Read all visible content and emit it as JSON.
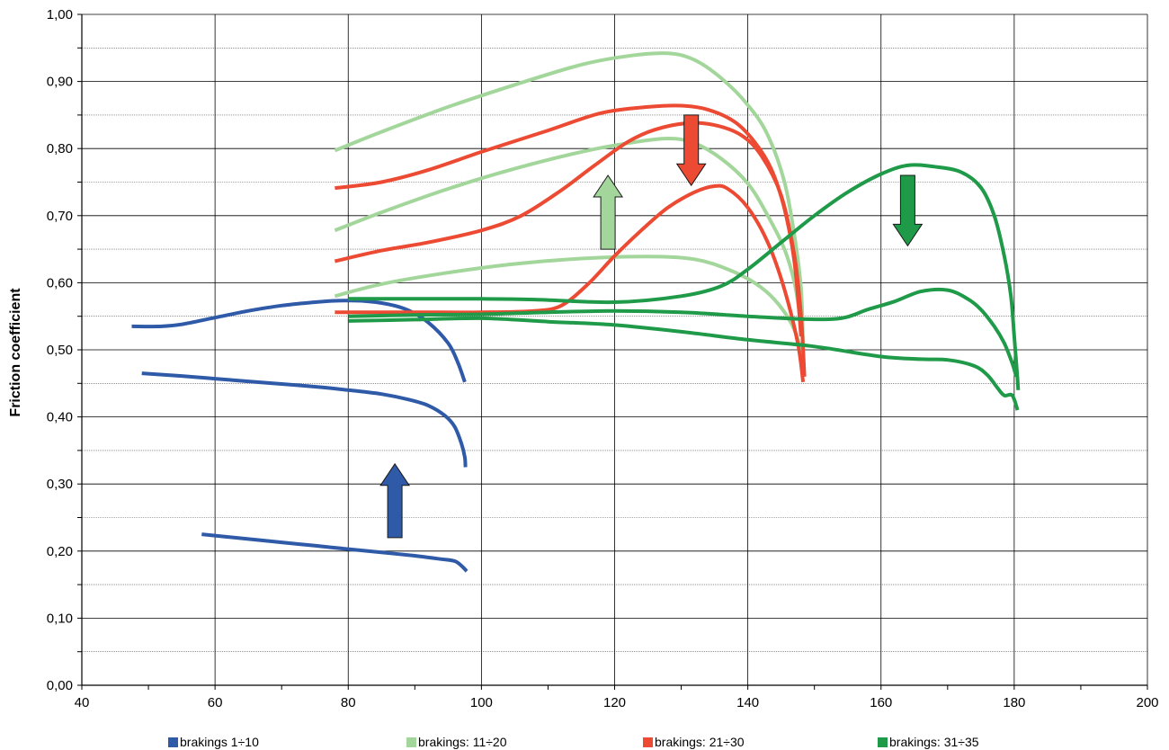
{
  "chart_data": {
    "type": "line",
    "title": "",
    "xlabel": "",
    "ylabel": "Friction coefficient",
    "xlim": [
      40,
      200
    ],
    "ylim": [
      0,
      1.0
    ],
    "x_ticks": [
      40,
      60,
      80,
      100,
      120,
      140,
      160,
      180,
      200
    ],
    "y_ticks": [
      "0,00",
      "0,10",
      "0,20",
      "0,30",
      "0,40",
      "0,50",
      "0,60",
      "0,70",
      "0,80",
      "0,90",
      "1,00"
    ],
    "grid": "horizontal every 0.05, vertical every 20",
    "legend_position": "bottom",
    "legend": [
      {
        "label": "brakings 1÷10",
        "color": "#2f5aa8"
      },
      {
        "label": "brakings: 11÷20",
        "color": "#a3d69a"
      },
      {
        "label": "brakings: 21÷30",
        "color": "#ec4a32"
      },
      {
        "label": "brakings: 31÷35",
        "color": "#1f9a48"
      }
    ],
    "series": [
      {
        "group": "brakings 1÷10",
        "color": "#2f5aa8",
        "points": [
          [
            47.5,
            0.535
          ],
          [
            52,
            0.535
          ],
          [
            55,
            0.538
          ],
          [
            60,
            0.548
          ],
          [
            65,
            0.558
          ],
          [
            70,
            0.566
          ],
          [
            75,
            0.571
          ],
          [
            78,
            0.573
          ],
          [
            82,
            0.573
          ],
          [
            86,
            0.568
          ],
          [
            89,
            0.559
          ],
          [
            92,
            0.541
          ],
          [
            95,
            0.51
          ],
          [
            96.5,
            0.48
          ],
          [
            97.5,
            0.452
          ]
        ]
      },
      {
        "group": "brakings 1÷10",
        "color": "#2f5aa8",
        "points": [
          [
            49,
            0.465
          ],
          [
            55,
            0.461
          ],
          [
            60,
            0.457
          ],
          [
            65,
            0.453
          ],
          [
            70,
            0.449
          ],
          [
            75,
            0.445
          ],
          [
            80,
            0.44
          ],
          [
            85,
            0.434
          ],
          [
            89,
            0.426
          ],
          [
            92,
            0.417
          ],
          [
            94.5,
            0.402
          ],
          [
            96,
            0.385
          ],
          [
            97,
            0.36
          ],
          [
            97.5,
            0.34
          ],
          [
            97.6,
            0.325
          ]
        ]
      },
      {
        "group": "brakings 1÷10",
        "color": "#2f5aa8",
        "points": [
          [
            58,
            0.225
          ],
          [
            65,
            0.218
          ],
          [
            70,
            0.213
          ],
          [
            75,
            0.208
          ],
          [
            80,
            0.203
          ],
          [
            85,
            0.198
          ],
          [
            90,
            0.193
          ],
          [
            94,
            0.188
          ],
          [
            96,
            0.185
          ],
          [
            97,
            0.178
          ],
          [
            97.8,
            0.17
          ]
        ]
      },
      {
        "group": "brakings: 11÷20",
        "color": "#a3d69a",
        "points": [
          [
            78,
            0.797
          ],
          [
            85,
            0.825
          ],
          [
            95,
            0.862
          ],
          [
            105,
            0.895
          ],
          [
            115,
            0.925
          ],
          [
            122,
            0.938
          ],
          [
            128,
            0.942
          ],
          [
            132,
            0.932
          ],
          [
            136,
            0.905
          ],
          [
            140,
            0.865
          ],
          [
            143,
            0.82
          ],
          [
            145.5,
            0.75
          ],
          [
            147,
            0.67
          ],
          [
            148,
            0.59
          ],
          [
            148.3,
            0.5
          ]
        ]
      },
      {
        "group": "brakings: 11÷20",
        "color": "#a3d69a",
        "points": [
          [
            78,
            0.678
          ],
          [
            85,
            0.705
          ],
          [
            95,
            0.74
          ],
          [
            105,
            0.77
          ],
          [
            115,
            0.795
          ],
          [
            122,
            0.808
          ],
          [
            128,
            0.815
          ],
          [
            132,
            0.808
          ],
          [
            136,
            0.785
          ],
          [
            140,
            0.748
          ],
          [
            143,
            0.7
          ],
          [
            145.5,
            0.65
          ],
          [
            147,
            0.6
          ],
          [
            148,
            0.54
          ]
        ]
      },
      {
        "group": "brakings: 11÷20",
        "color": "#a3d69a",
        "points": [
          [
            78,
            0.58
          ],
          [
            85,
            0.598
          ],
          [
            95,
            0.615
          ],
          [
            105,
            0.628
          ],
          [
            115,
            0.636
          ],
          [
            125,
            0.639
          ],
          [
            132,
            0.635
          ],
          [
            137,
            0.62
          ],
          [
            141,
            0.6
          ],
          [
            144,
            0.575
          ],
          [
            146.5,
            0.54
          ],
          [
            148,
            0.5
          ],
          [
            148.2,
            0.48
          ]
        ]
      },
      {
        "group": "brakings: 21÷30",
        "color": "#ec4a32",
        "points": [
          [
            78,
            0.741
          ],
          [
            85,
            0.75
          ],
          [
            92,
            0.768
          ],
          [
            100,
            0.795
          ],
          [
            110,
            0.827
          ],
          [
            118,
            0.853
          ],
          [
            125,
            0.862
          ],
          [
            130,
            0.864
          ],
          [
            134,
            0.858
          ],
          [
            138,
            0.84
          ],
          [
            141,
            0.81
          ],
          [
            143.5,
            0.77
          ],
          [
            145.5,
            0.71
          ],
          [
            147,
            0.63
          ],
          [
            148,
            0.52
          ]
        ]
      },
      {
        "group": "brakings: 21÷30",
        "color": "#ec4a32",
        "points": [
          [
            78,
            0.632
          ],
          [
            85,
            0.648
          ],
          [
            92,
            0.66
          ],
          [
            100,
            0.678
          ],
          [
            106,
            0.7
          ],
          [
            112,
            0.738
          ],
          [
            117,
            0.775
          ],
          [
            122,
            0.81
          ],
          [
            126,
            0.828
          ],
          [
            131,
            0.838
          ],
          [
            135,
            0.835
          ],
          [
            139,
            0.82
          ],
          [
            142,
            0.79
          ],
          [
            145,
            0.73
          ],
          [
            147,
            0.64
          ],
          [
            148,
            0.55
          ],
          [
            148.5,
            0.46
          ]
        ]
      },
      {
        "group": "brakings: 21÷30",
        "color": "#ec4a32",
        "points": [
          [
            78,
            0.556
          ],
          [
            90,
            0.556
          ],
          [
            100,
            0.556
          ],
          [
            108,
            0.558
          ],
          [
            112,
            0.566
          ],
          [
            116,
            0.598
          ],
          [
            120,
            0.64
          ],
          [
            124,
            0.678
          ],
          [
            128,
            0.712
          ],
          [
            132,
            0.735
          ],
          [
            135,
            0.744
          ],
          [
            137,
            0.74
          ],
          [
            140,
            0.712
          ],
          [
            143,
            0.66
          ],
          [
            145.5,
            0.59
          ],
          [
            147.5,
            0.51
          ],
          [
            148.3,
            0.452
          ]
        ]
      },
      {
        "group": "brakings: 31÷35",
        "color": "#1f9a48",
        "points": [
          [
            80,
            0.576
          ],
          [
            90,
            0.576
          ],
          [
            100,
            0.576
          ],
          [
            108,
            0.575
          ],
          [
            120,
            0.571
          ],
          [
            130,
            0.58
          ],
          [
            136,
            0.595
          ],
          [
            140,
            0.62
          ],
          [
            145,
            0.66
          ],
          [
            150,
            0.7
          ],
          [
            155,
            0.735
          ],
          [
            160,
            0.762
          ],
          [
            164,
            0.775
          ],
          [
            168,
            0.773
          ],
          [
            172,
            0.765
          ],
          [
            175,
            0.742
          ],
          [
            177,
            0.7
          ],
          [
            178.5,
            0.64
          ],
          [
            179.5,
            0.58
          ],
          [
            180,
            0.52
          ],
          [
            180.4,
            0.47
          ],
          [
            180.6,
            0.44
          ]
        ]
      },
      {
        "group": "brakings: 31÷35",
        "color": "#1f9a48",
        "points": [
          [
            80,
            0.55
          ],
          [
            90,
            0.552
          ],
          [
            100,
            0.553
          ],
          [
            110,
            0.556
          ],
          [
            120,
            0.558
          ],
          [
            130,
            0.556
          ],
          [
            140,
            0.55
          ],
          [
            148,
            0.546
          ],
          [
            154,
            0.547
          ],
          [
            158,
            0.56
          ],
          [
            162,
            0.572
          ],
          [
            166,
            0.587
          ],
          [
            170,
            0.589
          ],
          [
            173,
            0.576
          ],
          [
            175,
            0.56
          ],
          [
            177,
            0.535
          ],
          [
            178.5,
            0.51
          ],
          [
            179.7,
            0.48
          ],
          [
            180.3,
            0.46
          ]
        ]
      },
      {
        "group": "brakings: 31÷35",
        "color": "#1f9a48",
        "points": [
          [
            80,
            0.543
          ],
          [
            90,
            0.545
          ],
          [
            100,
            0.547
          ],
          [
            110,
            0.542
          ],
          [
            120,
            0.537
          ],
          [
            130,
            0.527
          ],
          [
            140,
            0.515
          ],
          [
            150,
            0.505
          ],
          [
            160,
            0.49
          ],
          [
            166,
            0.486
          ],
          [
            170,
            0.485
          ],
          [
            174,
            0.476
          ],
          [
            176,
            0.462
          ],
          [
            177.5,
            0.443
          ],
          [
            178.5,
            0.432
          ],
          [
            179.7,
            0.432
          ],
          [
            180.5,
            0.41
          ]
        ]
      }
    ],
    "annotations": [
      {
        "kind": "arrow",
        "direction": "up",
        "color": "#2f5aa8",
        "x": 87,
        "y_from": 0.22,
        "y_to": 0.33
      },
      {
        "kind": "arrow",
        "direction": "up",
        "color": "#a3d69a",
        "x": 119,
        "y_from": 0.65,
        "y_to": 0.76
      },
      {
        "kind": "arrow",
        "direction": "down",
        "color": "#ec4a32",
        "x": 131.5,
        "y_from": 0.85,
        "y_to": 0.745
      },
      {
        "kind": "arrow",
        "direction": "down",
        "color": "#1f9a48",
        "x": 164,
        "y_from": 0.76,
        "y_to": 0.655
      }
    ]
  }
}
